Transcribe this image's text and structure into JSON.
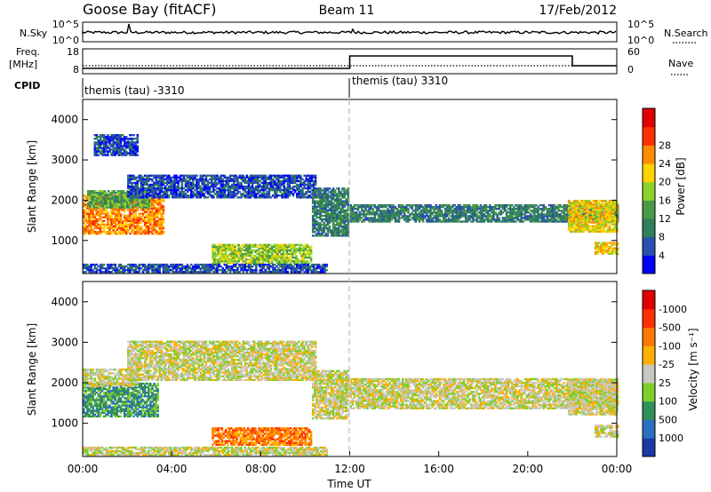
{
  "header": {
    "station": "Goose Bay (fitACF)",
    "beam": "Beam 11",
    "date": "17/Feb/2012"
  },
  "noise_panel": {
    "left_label": "N.Sky",
    "right_label": "N.Search",
    "left_ticks": [
      "10^5",
      "10^0"
    ],
    "right_ticks": [
      "10^5",
      "10^0"
    ]
  },
  "freq_panel": {
    "left_label_1": "Freq.",
    "left_label_2": "[MHz]",
    "right_label": "Nave",
    "left_ticks": [
      "18",
      "8"
    ],
    "right_ticks": [
      "60",
      "0"
    ]
  },
  "cpid": {
    "label": "CPID",
    "segments": [
      {
        "name": "themis (tau) -3310",
        "start_hour": 0,
        "end_hour": 12
      },
      {
        "name": "themis (tau) 3310",
        "start_hour": 12,
        "end_hour": 24
      }
    ]
  },
  "chart_data": [
    {
      "type": "heatmap",
      "panel": "power",
      "ylabel": "Slant Range [km]",
      "y_ticks": [
        1000,
        2000,
        3000,
        4000
      ],
      "ylim": [
        180,
        4500
      ],
      "xlim_hours": [
        0,
        24
      ],
      "colorbar_label": "Power [dB]",
      "colorbar_ticks": [
        "4",
        "8",
        "12",
        "16",
        "20",
        "24",
        "28"
      ],
      "colors": [
        "#0000ff",
        "#2a4fae",
        "#2f7f5a",
        "#4a9a4a",
        "#8fd22a",
        "#ffd200",
        "#ff8c00",
        "#ff3000",
        "#e00000"
      ],
      "bands": [
        {
          "t0": 0.0,
          "t1": 3.6,
          "r0": 1150,
          "r1": 2100,
          "level": 6
        },
        {
          "t0": 0.2,
          "t1": 3.0,
          "r0": 1800,
          "r1": 2250,
          "level": 3
        },
        {
          "t0": 0.5,
          "t1": 2.5,
          "r0": 3100,
          "r1": 3600,
          "level": 1
        },
        {
          "t0": 2.0,
          "t1": 10.5,
          "r0": 2050,
          "r1": 2600,
          "level": 1
        },
        {
          "t0": 5.8,
          "t1": 10.3,
          "r0": 420,
          "r1": 900,
          "level": 4
        },
        {
          "t0": 10.3,
          "t1": 11.9,
          "r0": 1100,
          "r1": 2300,
          "level": 2
        },
        {
          "t0": 12.0,
          "t1": 24.0,
          "r0": 1450,
          "r1": 1900,
          "level": 2
        },
        {
          "t0": 21.8,
          "t1": 24.0,
          "r0": 1200,
          "r1": 2000,
          "level": 5
        },
        {
          "t0": 23.0,
          "t1": 24.0,
          "r0": 650,
          "r1": 950,
          "level": 5
        },
        {
          "t0": 0.0,
          "t1": 11.0,
          "r0": 200,
          "r1": 420,
          "level": 1
        }
      ]
    },
    {
      "type": "heatmap",
      "panel": "velocity",
      "ylabel": "Slant Range [km]",
      "y_ticks": [
        1000,
        2000,
        3000,
        4000
      ],
      "ylim": [
        180,
        4500
      ],
      "xlim_hours": [
        0,
        24
      ],
      "xlabel": "Time UT",
      "x_tick_labels": [
        "00:00",
        "04:00",
        "08:00",
        "12:00",
        "16:00",
        "20:00",
        "00:00"
      ],
      "colorbar_label": "Velocity [m s⁻¹]",
      "colorbar_ticks": [
        "1000",
        "500",
        "100",
        "25",
        "-25",
        "-100",
        "-500",
        "-1000"
      ],
      "colors": [
        "#1a3aa6",
        "#2a6fc0",
        "#2f8f5a",
        "#7fcf2a",
        "#c8c8c0",
        "#ffb000",
        "#ff7a00",
        "#ff3000",
        "#e00000"
      ],
      "bands": [
        {
          "t0": 0.0,
          "t1": 3.4,
          "r0": 1150,
          "r1": 2000,
          "level": 2
        },
        {
          "t0": 0.0,
          "t1": 2.5,
          "r0": 1900,
          "r1": 2350,
          "level": 4
        },
        {
          "t0": 2.0,
          "t1": 10.5,
          "r0": 2050,
          "r1": 3000,
          "level": 4
        },
        {
          "t0": 5.8,
          "t1": 10.3,
          "r0": 450,
          "r1": 900,
          "level": 6
        },
        {
          "t0": 10.3,
          "t1": 11.9,
          "r0": 1100,
          "r1": 2300,
          "level": 4
        },
        {
          "t0": 12.0,
          "t1": 24.0,
          "r0": 1350,
          "r1": 2100,
          "level": 4
        },
        {
          "t0": 21.8,
          "t1": 24.0,
          "r0": 1200,
          "r1": 2100,
          "level": 4
        },
        {
          "t0": 23.0,
          "t1": 24.0,
          "r0": 650,
          "r1": 950,
          "level": 4
        },
        {
          "t0": 0.0,
          "t1": 11.0,
          "r0": 200,
          "r1": 420,
          "level": 4
        }
      ]
    }
  ]
}
